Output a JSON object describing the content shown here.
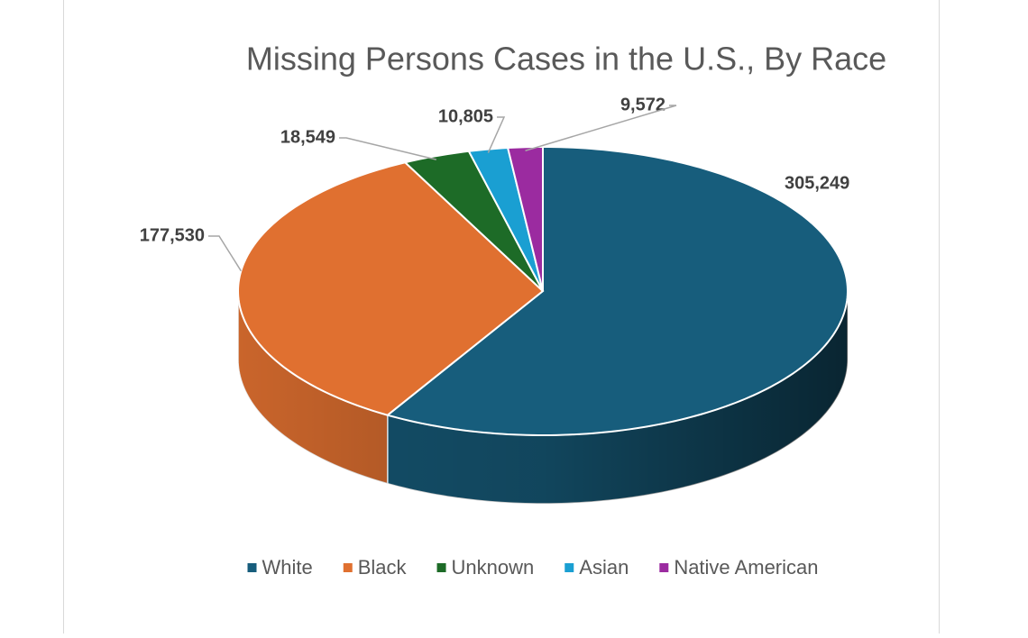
{
  "chart_data": {
    "type": "pie",
    "title": "Missing Persons Cases in the U.S., By Race",
    "categories": [
      "White",
      "Black",
      "Unknown",
      "Asian",
      "Native American"
    ],
    "values": [
      305249,
      177530,
      18549,
      10805,
      9572
    ],
    "value_labels": [
      "305,249",
      "177,530",
      "18,549",
      "10,805",
      "9,572"
    ],
    "colors": [
      "#175d7c",
      "#e07030",
      "#1d6b27",
      "#1a9fd2",
      "#9b2ba0"
    ],
    "legend": "bottom"
  }
}
